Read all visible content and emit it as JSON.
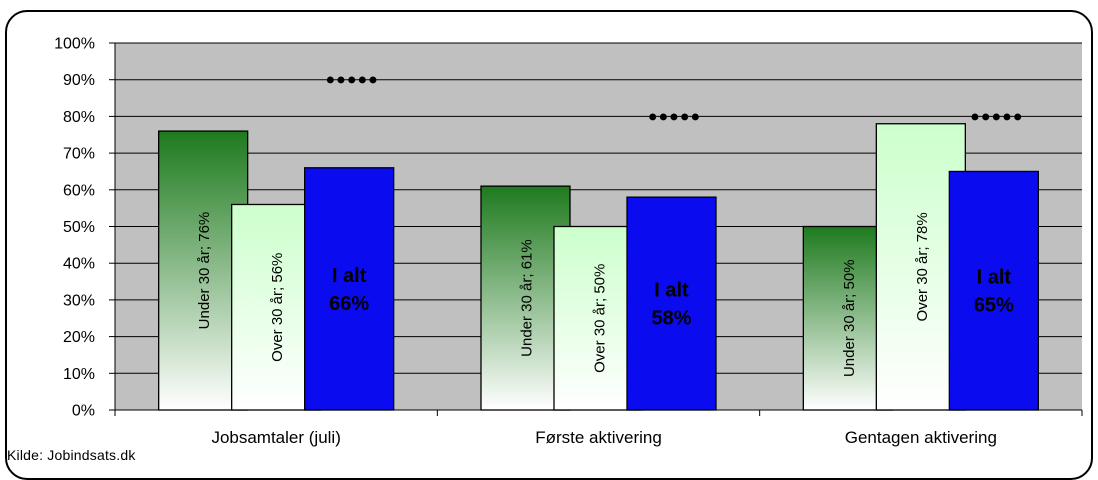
{
  "chart_data": {
    "type": "bar",
    "categories": [
      "Jobsamtaler (juli)",
      "Første aktivering",
      "Gentagen aktivering"
    ],
    "series": [
      {
        "name": "Under 30 år",
        "values": [
          76,
          61,
          50
        ],
        "labels": [
          "Under 30 år; 76%",
          "Under 30 år; 61%",
          "Under 30 år; 50%"
        ],
        "color_top": "#1e7a1e",
        "color_bottom": "#ffffff"
      },
      {
        "name": "Over 30 år",
        "values": [
          56,
          50,
          78
        ],
        "labels": [
          "Over 30 år; 56%",
          "Over 30 år; 50%",
          "Over 30 år; 78%"
        ],
        "color_top": "#ccffcc",
        "color_bottom": "#ffffff"
      },
      {
        "name": "I alt",
        "values": [
          66,
          58,
          65
        ],
        "labels": [
          "I alt 66%",
          "I alt 58%",
          "I alt 65%"
        ],
        "label_lines": [
          [
            "I alt",
            "66%"
          ],
          [
            "I alt",
            "58%"
          ],
          [
            "I alt",
            "65%"
          ]
        ],
        "color": "#0b0bf0"
      }
    ],
    "targets": [
      90,
      80,
      80
    ],
    "target_marker": "●●●●●",
    "yticks": [
      "0%",
      "10%",
      "20%",
      "30%",
      "40%",
      "50%",
      "60%",
      "70%",
      "80%",
      "90%",
      "100%"
    ],
    "ylim": [
      0,
      100
    ],
    "grid": true,
    "legend": "none",
    "plot_background": "#c0c0c0"
  },
  "source_note": "Kilde: Jobindsats.dk"
}
